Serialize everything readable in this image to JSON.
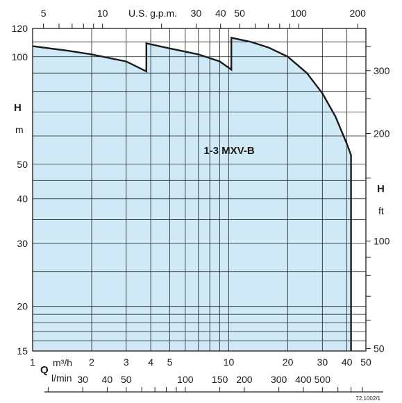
{
  "chart_data": {
    "type": "area",
    "title": "",
    "model_label": "1-3 MXV-B",
    "figure_code": "72.1002/1",
    "x_axis_bottom": {
      "unit_label": "m³/h",
      "symbol": "Q",
      "scale": "log",
      "range": [
        1,
        50
      ],
      "ticks": [
        "1",
        "2",
        "3",
        "4",
        "5",
        "10",
        "20",
        "30",
        "40",
        "50"
      ],
      "tick_values": [
        1,
        2,
        3,
        4,
        5,
        10,
        20,
        30,
        40,
        50
      ]
    },
    "x_axis_lpm": {
      "unit_label": "l/min",
      "ticks": [
        "30",
        "40",
        "50",
        "100",
        "150",
        "200",
        "300",
        "400",
        "500"
      ],
      "tick_values": [
        30,
        40,
        50,
        100,
        150,
        200,
        300,
        400,
        500
      ]
    },
    "x_axis_top": {
      "unit_label": "U.S. g.p.m.",
      "ticks": [
        "5",
        "10",
        "30",
        "40",
        "50",
        "100",
        "200"
      ],
      "tick_values": [
        5,
        10,
        30,
        40,
        50,
        100,
        200
      ]
    },
    "y_axis_left": {
      "symbol": "H",
      "unit_label": "m",
      "scale": "log",
      "range": [
        15,
        120
      ],
      "ticks": [
        "15",
        "20",
        "30",
        "40",
        "50",
        "100",
        "120"
      ],
      "tick_values": [
        15,
        20,
        30,
        40,
        50,
        100,
        120
      ]
    },
    "y_axis_right": {
      "symbol": "H",
      "unit_label": "ft",
      "ticks": [
        "50",
        "100",
        "200",
        "300"
      ],
      "tick_values": [
        50,
        100,
        200,
        300
      ]
    },
    "grid": true,
    "fill_color": "#cfeaf6",
    "line_color": "#1a1a1a",
    "envelope": {
      "x": [
        1.0,
        1.5,
        2.0,
        3.0,
        3.8,
        3.8,
        5.0,
        7.0,
        9.0,
        10.3,
        10.3,
        13.0,
        16.0,
        20.0,
        25.0,
        30.0,
        35.0,
        40.0,
        42.0,
        42.0
      ],
      "y": [
        107,
        104,
        101.5,
        97,
        91,
        109,
        105.5,
        101.5,
        97,
        92,
        113,
        110,
        106,
        100,
        90,
        79,
        68,
        57,
        53,
        15
      ]
    }
  }
}
